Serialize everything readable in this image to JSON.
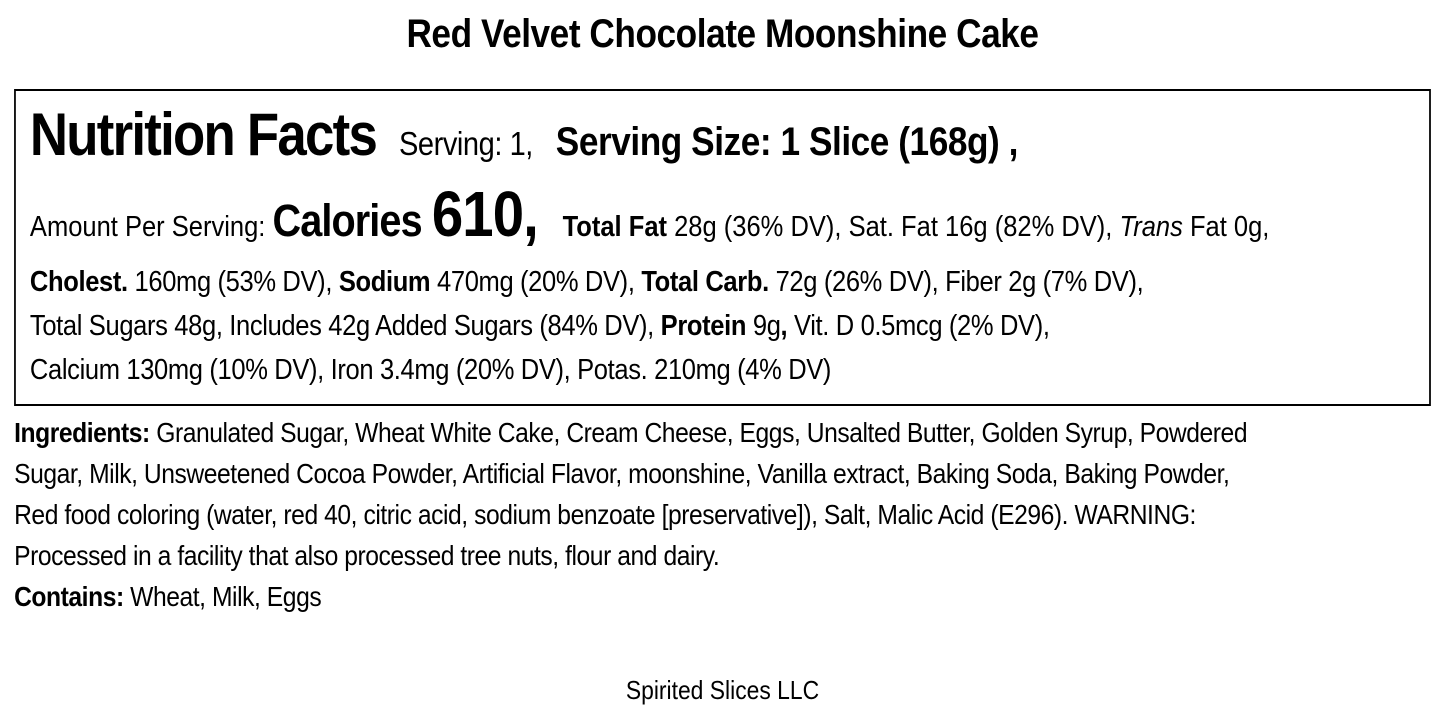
{
  "label": {
    "product_title": "Red Velvet Chocolate Moonshine Cake",
    "panel": {
      "lines": [
        {
          "name": "nutrition-facts-header-line",
          "class": "ph1",
          "segments": [
            {
              "text": "Nutrition Facts",
              "style": "nf"
            },
            {
              "text": "Serving: 1,",
              "style": "serving"
            },
            {
              "text": "Serving Size: 1 Slice (168g) ,",
              "style": "servingSize"
            }
          ]
        },
        {
          "name": "calories-line",
          "class": "ph2",
          "segments": [
            {
              "text": "Amount Per Serving: ",
              "style": "reg"
            },
            {
              "text": "Calories ",
              "style": "calWord"
            },
            {
              "text": "610,",
              "style": "calNum"
            },
            {
              "text": "Total Fat ",
              "style": "bold"
            },
            {
              "text": "28g (36% DV), Sat. Fat 16g (82% DV), ",
              "style": "reg"
            },
            {
              "text": "Trans ",
              "style": "italic"
            },
            {
              "text": "Fat 0g,",
              "style": "reg"
            }
          ]
        },
        {
          "name": "cholesterol-sodium-carb-line",
          "class": "ph",
          "segments": [
            {
              "text": "Cholest. ",
              "style": "bold"
            },
            {
              "text": "160mg (53% DV), ",
              "style": "reg"
            },
            {
              "text": "Sodium ",
              "style": "bold"
            },
            {
              "text": "470mg (20% DV), ",
              "style": "reg"
            },
            {
              "text": "Total Carb. ",
              "style": "bold"
            },
            {
              "text": "72g (26% DV), Fiber 2g (7% DV),",
              "style": "reg"
            }
          ]
        },
        {
          "name": "sugars-protein-vitamin-line",
          "class": "ph",
          "segments": [
            {
              "text": "Total Sugars 48g, Includes 42g Added Sugars (84% DV), ",
              "style": "reg"
            },
            {
              "text": "Protein",
              "style": "bold"
            },
            {
              "text": " 9g",
              "style": "reg"
            },
            {
              "text": ",",
              "style": "bold"
            },
            {
              "text": " Vit. D 0.5mcg (2% DV),",
              "style": "reg"
            }
          ]
        },
        {
          "name": "minerals-line",
          "class": "ph",
          "segments": [
            {
              "text": "Calcium 130mg (10% DV), Iron 3.4mg (20% DV), Potas. 210mg (4% DV)",
              "style": "reg"
            }
          ]
        }
      ]
    },
    "ingredients": {
      "lines": [
        {
          "name": "ingredients-line",
          "class": "il",
          "segments": [
            {
              "text": "Ingredients:",
              "style": "bold"
            },
            {
              "text": " Granulated Sugar, Wheat White Cake, Cream Cheese, Eggs, Unsalted Butter, Golden Syrup, Powdered",
              "style": "reg"
            }
          ]
        },
        {
          "name": "ingredients-line",
          "class": "il",
          "segments": [
            {
              "text": "Sugar, Milk, Unsweetened Cocoa Powder, Artificial Flavor, moonshine, Vanilla extract, Baking Soda, Baking Powder,",
              "style": "reg"
            }
          ]
        },
        {
          "name": "ingredients-line",
          "class": "il",
          "segments": [
            {
              "text": "Red food coloring (water, red 40, citric acid, sodium benzoate [preservative]), Salt, Malic Acid (E296). WARNING:",
              "style": "reg"
            }
          ]
        },
        {
          "name": "ingredients-line",
          "class": "il",
          "segments": [
            {
              "text": "Processed in a facility that also processed tree nuts, flour and dairy.",
              "style": "reg"
            }
          ]
        }
      ]
    },
    "contains": {
      "segments": [
        {
          "text": "Contains:",
          "style": "bold"
        },
        {
          "text": " Wheat, Milk, Eggs",
          "style": "reg"
        }
      ]
    },
    "footer": "Spirited Slices LLC"
  },
  "colors": {
    "text": "#000000",
    "background": "#ffffff",
    "panel_border": "#000000"
  }
}
